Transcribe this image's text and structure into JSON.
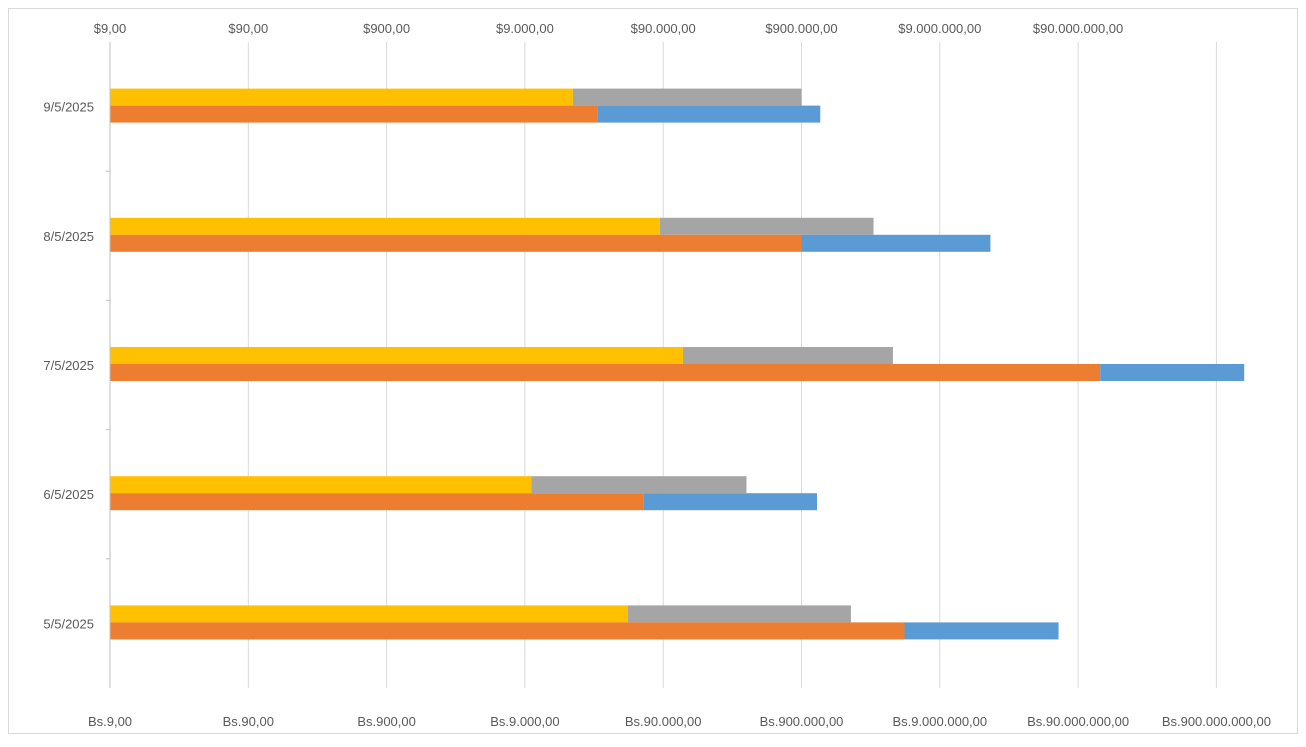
{
  "chart_data": {
    "type": "bar",
    "orientation": "horizontal",
    "stacked": true,
    "x_scale": "log10",
    "grid": true,
    "legend": "none",
    "categories": [
      "9/5/2025",
      "8/5/2025",
      "7/5/2025",
      "6/5/2025",
      "5/5/2025"
    ],
    "top_axis": {
      "ticks": [
        "$9,00",
        "$90,00",
        "$900,00",
        "$9.000,00",
        "$90.000,00",
        "$900.000,00",
        "$9.000.000,00",
        "$90.000.000,00"
      ],
      "range": [
        9,
        90000000
      ],
      "series": [
        {
          "color": "#FFC000",
          "values": [
            20000,
            85000,
            125000,
            10000,
            50000
          ]
        },
        {
          "color": "#A5A5A5",
          "values": [
            880000,
            2900000,
            4000000,
            350000,
            2000000
          ]
        }
      ]
    },
    "bottom_axis": {
      "ticks": [
        "Bs.9,00",
        "Bs.90,00",
        "Bs.900,00",
        "Bs.9.000,00",
        "Bs.90.000,00",
        "Bs.900.000,00",
        "Bs.9.000.000,00",
        "Bs.90.000.000,00",
        "Bs.900.000.000,00"
      ],
      "range": [
        9,
        900000000
      ],
      "series": [
        {
          "color": "#ED7D31",
          "values": [
            30000,
            900000,
            130000000,
            65000,
            5000000
          ]
        },
        {
          "color": "#5B9BD5",
          "values": [
            1200000,
            20000000,
            1300000000,
            1100000,
            60000000
          ]
        }
      ]
    }
  }
}
